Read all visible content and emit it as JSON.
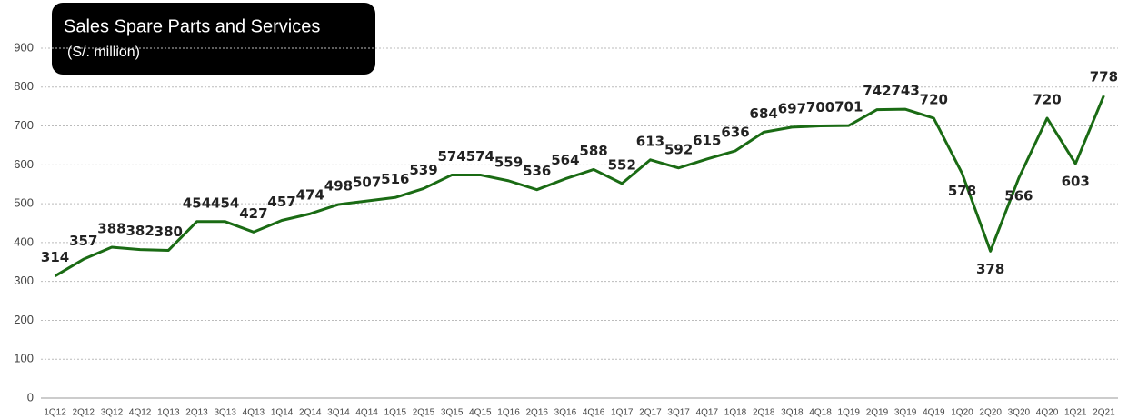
{
  "chart_data": {
    "type": "line",
    "title": "Sales Spare Parts and Services",
    "subtitle": "(S/. million)",
    "categories": [
      "1Q12",
      "2Q12",
      "3Q12",
      "4Q12",
      "1Q13",
      "2Q13",
      "3Q13",
      "4Q13",
      "1Q14",
      "2Q14",
      "3Q14",
      "4Q14",
      "1Q15",
      "2Q15",
      "3Q15",
      "4Q15",
      "1Q16",
      "2Q16",
      "3Q16",
      "4Q16",
      "1Q17",
      "2Q17",
      "3Q17",
      "4Q17",
      "1Q18",
      "2Q18",
      "3Q18",
      "4Q18",
      "1Q19",
      "2Q19",
      "3Q19",
      "4Q19",
      "1Q20",
      "2Q20",
      "3Q20",
      "4Q20",
      "1Q21",
      "2Q21"
    ],
    "values": [
      314,
      357,
      388,
      382,
      380,
      454,
      454,
      427,
      457,
      474,
      498,
      507,
      516,
      539,
      574,
      574,
      559,
      536,
      564,
      588,
      552,
      613,
      592,
      615,
      636,
      684,
      697,
      700,
      701,
      742,
      743,
      720,
      578,
      378,
      566,
      720,
      603,
      778
    ],
    "color": "#1a6b14",
    "ylim": [
      0,
      900
    ],
    "yticks": [
      0,
      100,
      200,
      300,
      400,
      500,
      600,
      700,
      800,
      900
    ],
    "grid": true
  }
}
